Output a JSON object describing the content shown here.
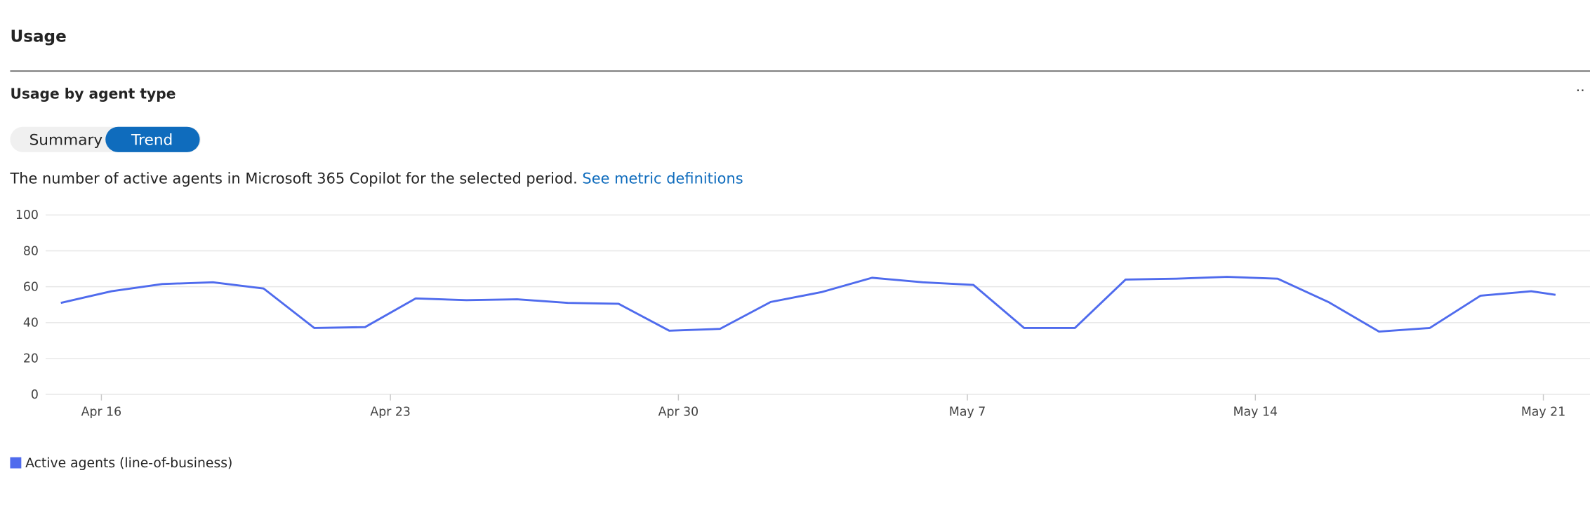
{
  "header": {
    "title": "Usage"
  },
  "card": {
    "title": "Usage by agent type",
    "toggle": [
      "Summary",
      "Trend"
    ],
    "description": "The number of active agents in Microsoft 365 Copilot for the selected period.",
    "link": "See metric definitions"
  },
  "chart_data": {
    "type": "line",
    "x": [
      0,
      1,
      2,
      3,
      4,
      5,
      6,
      7,
      8,
      9,
      10,
      11,
      12,
      13,
      14,
      15,
      16,
      17,
      18,
      19,
      20,
      21,
      22,
      23,
      24,
      25,
      26,
      27,
      28,
      29,
      29.48
    ],
    "series": [
      {
        "name": "Active agents (line-of-business)",
        "color": "#4f6bed",
        "values": [
          51,
          57.5,
          61.5,
          62.5,
          59,
          37,
          37.5,
          53.5,
          52.5,
          53,
          51,
          50.5,
          35.5,
          36.5,
          51.5,
          57,
          65,
          62.5,
          61,
          37,
          37,
          64,
          64.5,
          65.5,
          64.5,
          51.5,
          35,
          37,
          55,
          57.5,
          55.5
        ]
      }
    ],
    "xlim": [
      -0.3,
      30.16
    ],
    "xticks": [
      {
        "value": 0.8,
        "label": "Apr 16"
      },
      {
        "value": 6.5,
        "label": "Apr 23"
      },
      {
        "value": 12.18,
        "label": "Apr 30"
      },
      {
        "value": 17.88,
        "label": "May 7"
      },
      {
        "value": 23.56,
        "label": "May 14"
      },
      {
        "value": 29.24,
        "label": "May 21"
      }
    ],
    "ylim": [
      0,
      100
    ],
    "yticks": [
      0,
      20,
      40,
      60,
      80,
      100
    ],
    "grid": true
  }
}
